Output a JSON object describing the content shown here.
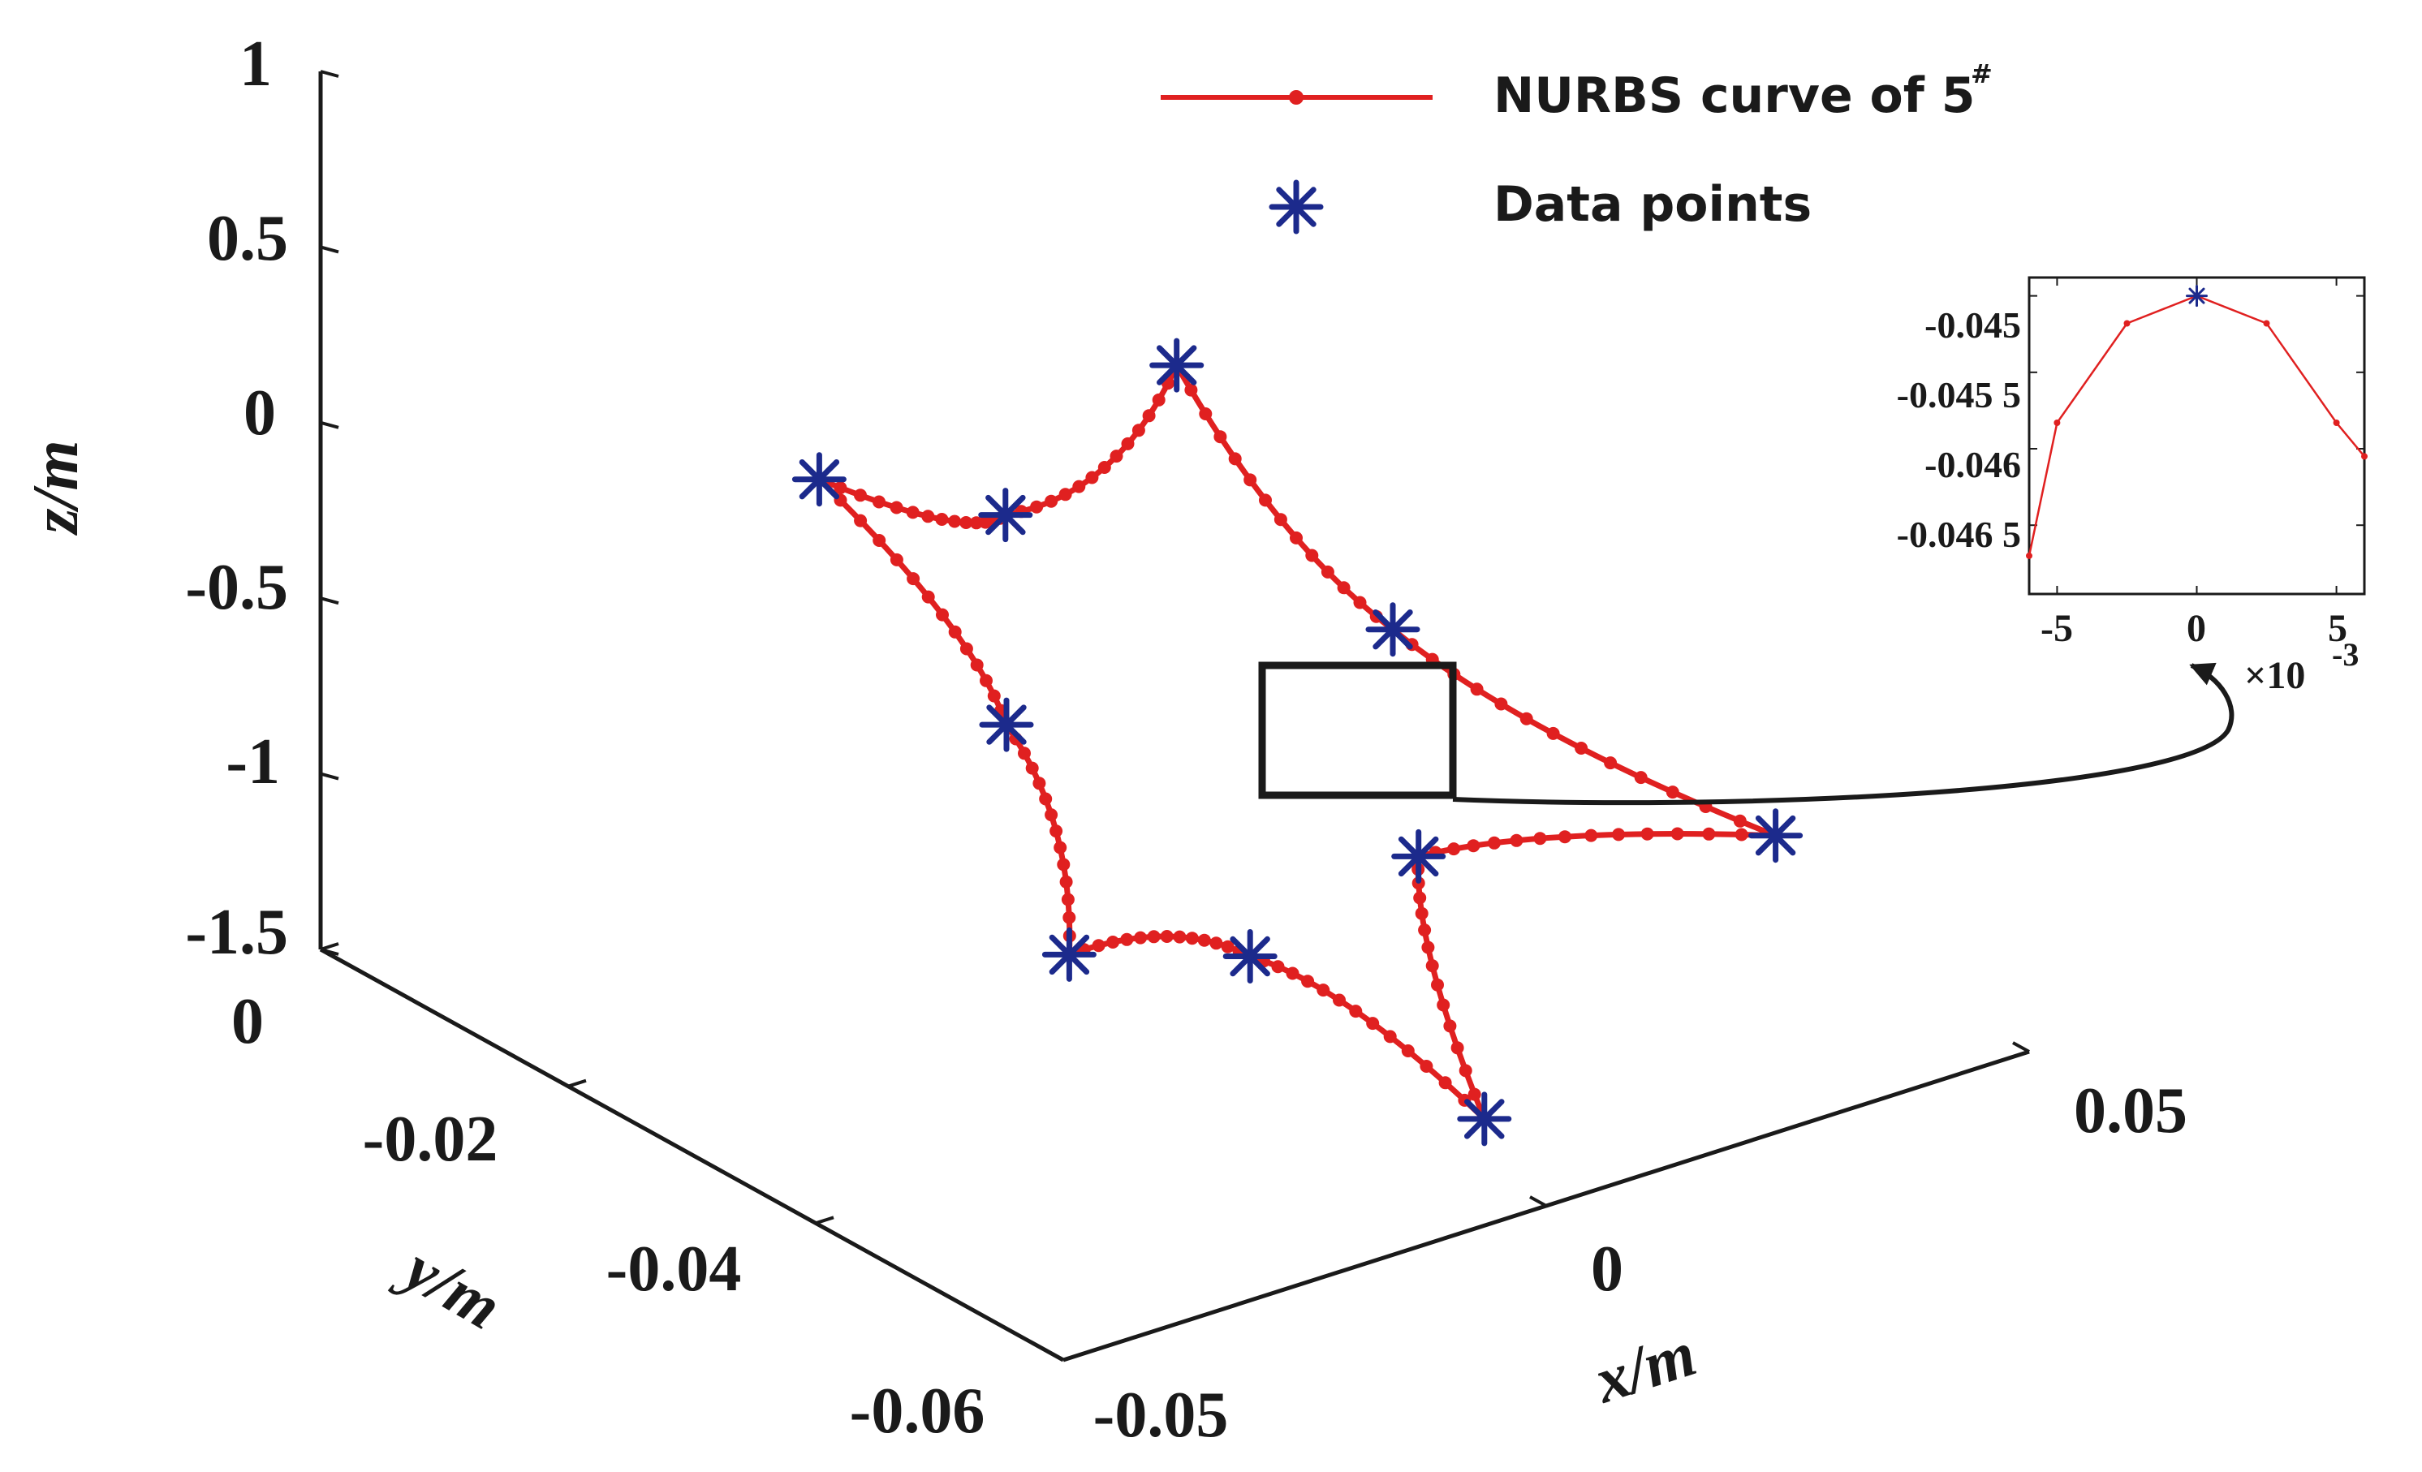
{
  "colors": {
    "curve": "#e02020",
    "points": "#1c2a8c",
    "axis": "#1a1a1a",
    "box": "#1a1a1a"
  },
  "chart_data": [
    {
      "type": "line",
      "xlabel": "x/m",
      "ylabel": "y/m",
      "zlabel": "z/m",
      "xlim": [
        -0.05,
        0.05
      ],
      "ylim": [
        -0.06,
        0
      ],
      "zlim": [
        -1.5,
        1
      ],
      "x_ticks": [
        "-0.05",
        "0",
        "0.05"
      ],
      "y_ticks": [
        "0",
        "-0.02",
        "-0.04",
        "-0.06"
      ],
      "z_ticks": [
        "1",
        "0.5",
        "0",
        "-0.5",
        "-1",
        "-1.5"
      ],
      "legend": {
        "position": "top-right",
        "entries": [
          {
            "label": "NURBS curve of 5",
            "superscript": "#",
            "style": "red-line-dot"
          },
          {
            "label": "Data points",
            "style": "blue-asterisk"
          }
        ]
      },
      "series": [
        {
          "name": "NURBS curve of 5#",
          "kind": "closed-star-curve",
          "tips": [
            {
              "x": -0.024,
              "y": -0.02,
              "z": 0.0
            },
            {
              "x": 0.013,
              "y": -0.02,
              "z": 0.0
            },
            {
              "x": 0.034,
              "y": -0.052,
              "z": -0.9
            },
            {
              "x": 0.0,
              "y": -0.055,
              "z": -1.35
            },
            {
              "x": -0.034,
              "y": -0.048,
              "z": -0.72
            }
          ],
          "inner": [
            {
              "x": -0.006,
              "y": -0.021,
              "z": -0.24
            },
            {
              "x": 0.02,
              "y": -0.032,
              "z": -0.58
            },
            {
              "x": 0.006,
              "y": -0.045,
              "z": -0.85
            },
            {
              "x": -0.014,
              "y": -0.047,
              "z": -0.92
            },
            {
              "x": -0.02,
              "y": -0.032,
              "z": -0.5
            }
          ]
        },
        {
          "name": "Data points",
          "kind": "scatter",
          "points": [
            {
              "x": -0.024,
              "y": -0.02,
              "z": 0.0
            },
            {
              "x": -0.006,
              "y": -0.021,
              "z": -0.24
            },
            {
              "x": 0.013,
              "y": -0.02,
              "z": 0.0
            },
            {
              "x": 0.02,
              "y": -0.032,
              "z": -0.58
            },
            {
              "x": 0.034,
              "y": -0.052,
              "z": -0.9
            },
            {
              "x": 0.006,
              "y": -0.045,
              "z": -0.85
            },
            {
              "x": 0.0,
              "y": -0.055,
              "z": -1.35
            },
            {
              "x": -0.014,
              "y": -0.047,
              "z": -0.92
            },
            {
              "x": -0.034,
              "y": -0.048,
              "z": -0.72
            },
            {
              "x": -0.02,
              "y": -0.032,
              "z": -0.5
            }
          ]
        }
      ]
    },
    {
      "type": "line",
      "role": "inset-zoom",
      "xlim": [
        -6,
        6
      ],
      "ylim": [
        -0.04695,
        -0.04488
      ],
      "x_ticks": [
        "-5",
        "0",
        "5"
      ],
      "y_ticks": [
        "-0.045",
        "-0.045 5",
        "-0.046",
        "-0.046 5"
      ],
      "x_multiplier": "×10",
      "x_multiplier_exp": "-3",
      "series": [
        {
          "name": "NURBS curve of 5#",
          "x": [
            -6,
            -5,
            -2.5,
            0,
            2.5,
            5,
            6
          ],
          "y": [
            -0.0467,
            -0.04583,
            -0.04518,
            -0.045,
            -0.04518,
            -0.04583,
            -0.04605
          ]
        },
        {
          "name": "Data points",
          "x": [
            0
          ],
          "y": [
            -0.045
          ]
        }
      ]
    }
  ]
}
